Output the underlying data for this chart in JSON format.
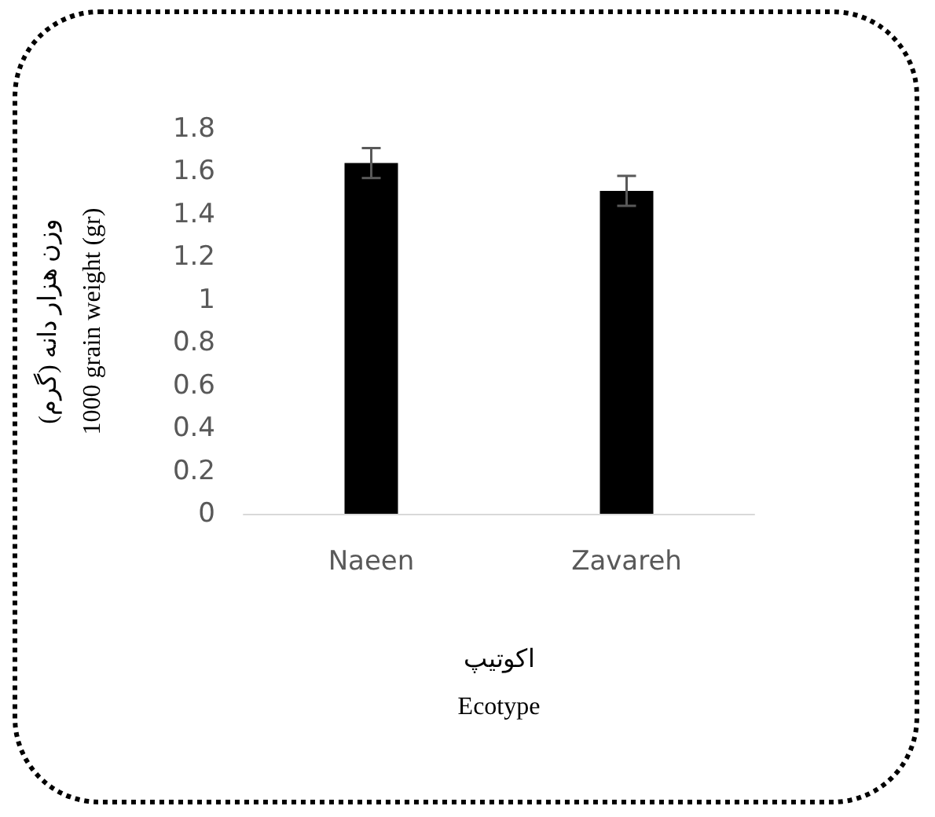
{
  "chart_data": {
    "type": "bar",
    "xlabel": "اکوتیپ\nEcotype",
    "ylabel": "وزن هزار دانه (گرم)\n1000 grain weight (gr)",
    "categories": [
      "Naeen",
      "Zavareh"
    ],
    "values": [
      1.64,
      1.51
    ],
    "errors": [
      0.07,
      0.07
    ],
    "color": "#000000",
    "ylim": [
      0,
      1.8
    ],
    "yticks": [
      0,
      0.2,
      0.4,
      0.6,
      0.8,
      1,
      1.2,
      1.4,
      1.6,
      1.8
    ],
    "grid": false
  }
}
